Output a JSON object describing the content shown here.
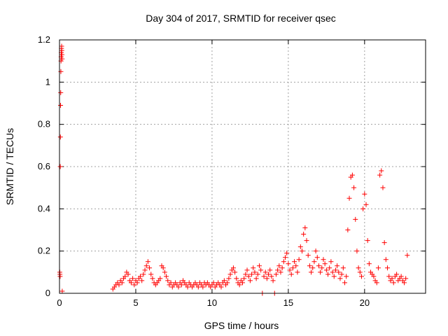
{
  "chart_data": {
    "type": "scatter",
    "title": "Day 304 of 2017, SRMTID for receiver qsec",
    "xlabel": "GPS time / hours",
    "ylabel": "SRMTID / TECUs",
    "xlim": [
      0,
      24
    ],
    "ylim": [
      0,
      1.2
    ],
    "xticks": [
      0,
      5,
      10,
      15,
      20
    ],
    "yticks": [
      0,
      0.2,
      0.4,
      0.6,
      0.8,
      1.0,
      1.2
    ],
    "xtick_labels": [
      "0",
      "5",
      "10",
      "15",
      "20"
    ],
    "ytick_labels": [
      "0",
      "0.2",
      "0.4",
      "0.6",
      "0.8",
      "1",
      "1.2"
    ],
    "grid": true,
    "marker": "+",
    "series": [
      {
        "name": "SRMTID",
        "color": "#ff0000",
        "points": [
          [
            0.02,
            0.1
          ],
          [
            0.03,
            0.09
          ],
          [
            0.04,
            0.08
          ],
          [
            0.05,
            0.6
          ],
          [
            0.06,
            0.74
          ],
          [
            0.07,
            0.89
          ],
          [
            0.08,
            0.95
          ],
          [
            0.09,
            1.05
          ],
          [
            0.1,
            1.1
          ],
          [
            0.11,
            1.12
          ],
          [
            0.12,
            1.14
          ],
          [
            0.13,
            1.16
          ],
          [
            0.14,
            1.17
          ],
          [
            0.15,
            1.15
          ],
          [
            0.16,
            1.13
          ],
          [
            0.17,
            1.11
          ],
          [
            0.18,
            0.01
          ],
          [
            3.5,
            0.02
          ],
          [
            3.6,
            0.03
          ],
          [
            3.7,
            0.04
          ],
          [
            3.8,
            0.05
          ],
          [
            3.9,
            0.04
          ],
          [
            4.0,
            0.06
          ],
          [
            4.1,
            0.05
          ],
          [
            4.2,
            0.07
          ],
          [
            4.3,
            0.08
          ],
          [
            4.4,
            0.1
          ],
          [
            4.5,
            0.09
          ],
          [
            4.6,
            0.06
          ],
          [
            4.7,
            0.05
          ],
          [
            4.8,
            0.07
          ],
          [
            4.9,
            0.04
          ],
          [
            5.0,
            0.06
          ],
          [
            5.1,
            0.05
          ],
          [
            5.2,
            0.07
          ],
          [
            5.3,
            0.08
          ],
          [
            5.4,
            0.06
          ],
          [
            5.5,
            0.09
          ],
          [
            5.6,
            0.11
          ],
          [
            5.7,
            0.13
          ],
          [
            5.8,
            0.15
          ],
          [
            5.9,
            0.12
          ],
          [
            6.0,
            0.09
          ],
          [
            6.1,
            0.07
          ],
          [
            6.2,
            0.05
          ],
          [
            6.3,
            0.04
          ],
          [
            6.4,
            0.05
          ],
          [
            6.5,
            0.06
          ],
          [
            6.6,
            0.07
          ],
          [
            6.7,
            0.13
          ],
          [
            6.8,
            0.12
          ],
          [
            6.9,
            0.1
          ],
          [
            7.0,
            0.08
          ],
          [
            7.1,
            0.06
          ],
          [
            7.2,
            0.04
          ],
          [
            7.3,
            0.05
          ],
          [
            7.4,
            0.03
          ],
          [
            7.5,
            0.04
          ],
          [
            7.6,
            0.05
          ],
          [
            7.7,
            0.04
          ],
          [
            7.8,
            0.03
          ],
          [
            7.9,
            0.05
          ],
          [
            8.0,
            0.04
          ],
          [
            8.1,
            0.06
          ],
          [
            8.2,
            0.05
          ],
          [
            8.3,
            0.04
          ],
          [
            8.4,
            0.03
          ],
          [
            8.5,
            0.05
          ],
          [
            8.6,
            0.04
          ],
          [
            8.7,
            0.03
          ],
          [
            8.8,
            0.04
          ],
          [
            8.9,
            0.05
          ],
          [
            9.0,
            0.04
          ],
          [
            9.1,
            0.03
          ],
          [
            9.2,
            0.05
          ],
          [
            9.3,
            0.04
          ],
          [
            9.4,
            0.03
          ],
          [
            9.5,
            0.05
          ],
          [
            9.6,
            0.04
          ],
          [
            9.7,
            0.05
          ],
          [
            9.8,
            0.04
          ],
          [
            9.9,
            0.03
          ],
          [
            10.0,
            0.04
          ],
          [
            10.1,
            0.05
          ],
          [
            10.2,
            0.03
          ],
          [
            10.3,
            0.04
          ],
          [
            10.4,
            0.05
          ],
          [
            10.5,
            0.04
          ],
          [
            10.6,
            0.03
          ],
          [
            10.7,
            0.05
          ],
          [
            10.8,
            0.06
          ],
          [
            10.9,
            0.04
          ],
          [
            11.0,
            0.05
          ],
          [
            11.1,
            0.07
          ],
          [
            11.2,
            0.09
          ],
          [
            11.3,
            0.11
          ],
          [
            11.4,
            0.12
          ],
          [
            11.5,
            0.1
          ],
          [
            11.6,
            0.07
          ],
          [
            11.7,
            0.05
          ],
          [
            11.8,
            0.04
          ],
          [
            11.9,
            0.06
          ],
          [
            12.0,
            0.05
          ],
          [
            12.1,
            0.07
          ],
          [
            12.2,
            0.09
          ],
          [
            12.3,
            0.11
          ],
          [
            12.4,
            0.08
          ],
          [
            12.5,
            0.06
          ],
          [
            12.6,
            0.09
          ],
          [
            12.7,
            0.12
          ],
          [
            12.8,
            0.1
          ],
          [
            12.9,
            0.07
          ],
          [
            13.0,
            0.09
          ],
          [
            13.1,
            0.13
          ],
          [
            13.2,
            0.11
          ],
          [
            13.3,
            0.0
          ],
          [
            13.4,
            0.08
          ],
          [
            13.5,
            0.1
          ],
          [
            13.6,
            0.07
          ],
          [
            13.7,
            0.09
          ],
          [
            13.8,
            0.11
          ],
          [
            13.9,
            0.08
          ],
          [
            14.0,
            0.06
          ],
          [
            14.1,
            0.0
          ],
          [
            14.2,
            0.09
          ],
          [
            14.3,
            0.11
          ],
          [
            14.4,
            0.13
          ],
          [
            14.5,
            0.1
          ],
          [
            14.6,
            0.12
          ],
          [
            14.7,
            0.15
          ],
          [
            14.8,
            0.17
          ],
          [
            14.9,
            0.19
          ],
          [
            15.0,
            0.14
          ],
          [
            15.1,
            0.11
          ],
          [
            15.2,
            0.09
          ],
          [
            15.3,
            0.12
          ],
          [
            15.4,
            0.15
          ],
          [
            15.5,
            0.13
          ],
          [
            15.6,
            0.1
          ],
          [
            15.7,
            0.16
          ],
          [
            15.8,
            0.22
          ],
          [
            15.9,
            0.2
          ],
          [
            16.0,
            0.28
          ],
          [
            16.1,
            0.31
          ],
          [
            16.2,
            0.25
          ],
          [
            16.3,
            0.18
          ],
          [
            16.4,
            0.13
          ],
          [
            16.5,
            0.1
          ],
          [
            16.6,
            0.12
          ],
          [
            16.7,
            0.15
          ],
          [
            16.8,
            0.2
          ],
          [
            16.9,
            0.17
          ],
          [
            17.0,
            0.13
          ],
          [
            17.1,
            0.1
          ],
          [
            17.2,
            0.12
          ],
          [
            17.3,
            0.16
          ],
          [
            17.4,
            0.14
          ],
          [
            17.5,
            0.11
          ],
          [
            17.6,
            0.09
          ],
          [
            17.7,
            0.12
          ],
          [
            17.8,
            0.15
          ],
          [
            17.9,
            0.1
          ],
          [
            18.0,
            0.08
          ],
          [
            18.1,
            0.11
          ],
          [
            18.2,
            0.13
          ],
          [
            18.3,
            0.1
          ],
          [
            18.4,
            0.07
          ],
          [
            18.5,
            0.09
          ],
          [
            18.6,
            0.12
          ],
          [
            18.7,
            0.05
          ],
          [
            18.8,
            0.08
          ],
          [
            18.9,
            0.3
          ],
          [
            19.0,
            0.45
          ],
          [
            19.1,
            0.55
          ],
          [
            19.2,
            0.56
          ],
          [
            19.3,
            0.5
          ],
          [
            19.4,
            0.35
          ],
          [
            19.5,
            0.2
          ],
          [
            19.6,
            0.12
          ],
          [
            19.7,
            0.1
          ],
          [
            19.8,
            0.08
          ],
          [
            19.9,
            0.4
          ],
          [
            20.0,
            0.47
          ],
          [
            20.1,
            0.42
          ],
          [
            20.2,
            0.25
          ],
          [
            20.3,
            0.14
          ],
          [
            20.4,
            0.1
          ],
          [
            20.5,
            0.09
          ],
          [
            20.6,
            0.08
          ],
          [
            20.7,
            0.06
          ],
          [
            20.8,
            0.05
          ],
          [
            20.9,
            0.12
          ],
          [
            21.0,
            0.56
          ],
          [
            21.1,
            0.58
          ],
          [
            21.2,
            0.5
          ],
          [
            21.3,
            0.24
          ],
          [
            21.4,
            0.16
          ],
          [
            21.5,
            0.12
          ],
          [
            21.6,
            0.08
          ],
          [
            21.7,
            0.06
          ],
          [
            21.8,
            0.07
          ],
          [
            21.9,
            0.05
          ],
          [
            22.0,
            0.08
          ],
          [
            22.1,
            0.09
          ],
          [
            22.2,
            0.06
          ],
          [
            22.3,
            0.07
          ],
          [
            22.4,
            0.08
          ],
          [
            22.5,
            0.06
          ],
          [
            22.6,
            0.05
          ],
          [
            22.7,
            0.07
          ],
          [
            22.8,
            0.18
          ]
        ]
      }
    ]
  }
}
